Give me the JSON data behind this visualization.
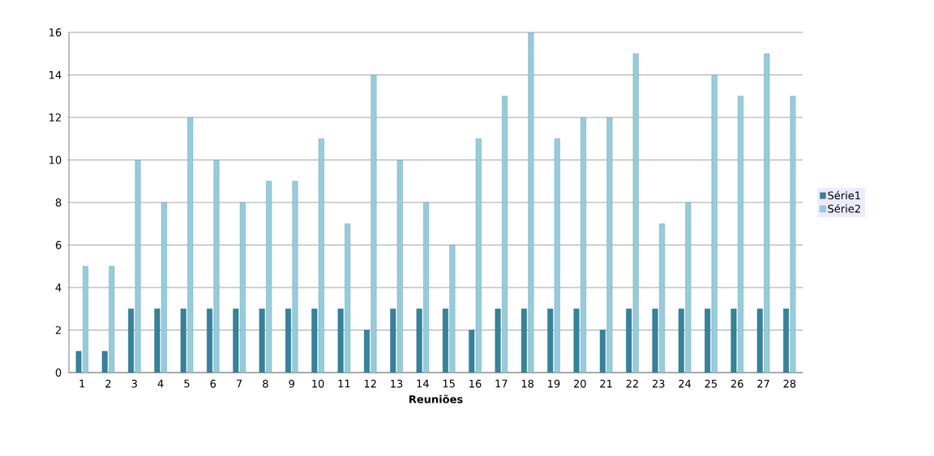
{
  "chart_data": {
    "type": "bar",
    "xlabel": "Reuniões",
    "categories": [
      "1",
      "2",
      "3",
      "4",
      "5",
      "6",
      "7",
      "8",
      "9",
      "10",
      "11",
      "12",
      "13",
      "14",
      "15",
      "16",
      "17",
      "18",
      "19",
      "20",
      "21",
      "22",
      "23",
      "24",
      "25",
      "26",
      "27",
      "28"
    ],
    "series": [
      {
        "name": "Série1",
        "color": "#31849b",
        "values": [
          1,
          1,
          3,
          3,
          3,
          3,
          3,
          3,
          3,
          3,
          3,
          2,
          3,
          3,
          3,
          2,
          3,
          3,
          3,
          3,
          2,
          3,
          3,
          3,
          3,
          3,
          3,
          3
        ]
      },
      {
        "name": "Série2",
        "color": "#93cddd",
        "values": [
          5,
          5,
          10,
          8,
          12,
          10,
          8,
          9,
          9,
          11,
          7,
          14,
          10,
          8,
          6,
          11,
          13,
          16,
          11,
          12,
          12,
          15,
          7,
          8,
          14,
          13,
          15,
          13
        ]
      }
    ],
    "ylim": [
      0,
      16
    ],
    "yticks": [
      0,
      2,
      4,
      6,
      8,
      10,
      12,
      14,
      16
    ],
    "grid": "y",
    "legend": "right"
  }
}
